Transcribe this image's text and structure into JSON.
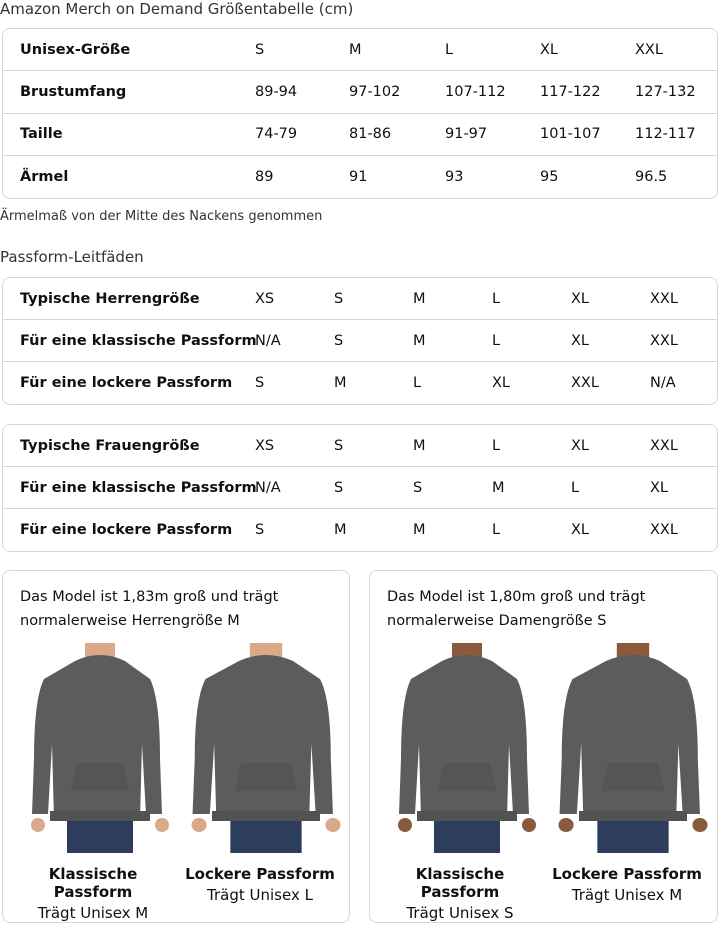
{
  "title": "Amazon Merch on Demand Größentabelle (cm)",
  "size_table": {
    "rows": [
      [
        "Unisex-Größe",
        "S",
        "M",
        "L",
        "XL",
        "XXL"
      ],
      [
        "Brustumfang",
        "89-94",
        "97-102",
        "107-112",
        "117-122",
        "127-132"
      ],
      [
        "Taille",
        "74-79",
        "81-86",
        "91-97",
        "101-107",
        "112-117"
      ],
      [
        "Ärmel",
        "89",
        "91",
        "93",
        "95",
        "96.5"
      ]
    ]
  },
  "note": "Ärmelmaß von der Mitte des Nackens genommen",
  "fit_title": "Passform-Leitfäden",
  "men_table": {
    "rows": [
      [
        "Typische Herrengröße",
        "XS",
        "S",
        "M",
        "L",
        "XL",
        "XXL"
      ],
      [
        "Für eine klassische Passform",
        "N/A",
        "S",
        "M",
        "L",
        "XL",
        "XXL"
      ],
      [
        "Für eine lockere Passform",
        "S",
        "M",
        "L",
        "XL",
        "XXL",
        "N/A"
      ]
    ]
  },
  "women_table": {
    "rows": [
      [
        "Typische Frauengröße",
        "XS",
        "S",
        "M",
        "L",
        "XL",
        "XXL"
      ],
      [
        "Für eine klassische Passform",
        "N/A",
        "S",
        "S",
        "M",
        "L",
        "XL"
      ],
      [
        "Für eine lockere Passform",
        "S",
        "M",
        "M",
        "L",
        "XL",
        "XXL"
      ]
    ]
  },
  "cards": [
    {
      "caption": "Das Model ist 1,83m groß und trägt normalerweise Herrengröße M",
      "figures": [
        {
          "title": "Klassische Passform",
          "sub": "Trägt Unisex M"
        },
        {
          "title": "Lockere Passform",
          "sub": "Trägt Unisex L"
        }
      ]
    },
    {
      "caption": "Das Model ist 1,80m groß und trägt normalerweise Damengröße S",
      "figures": [
        {
          "title": "Klassische Passform",
          "sub": "Trägt Unisex S"
        },
        {
          "title": "Lockere Passform",
          "sub": "Trägt Unisex M"
        }
      ]
    }
  ],
  "colors": {
    "hoodie": "#5c5c5c",
    "jeans": "#2c3e5c",
    "skin_men": "#d9a98a",
    "skin_women": "#8a5a3c",
    "border": "#d5d9d9"
  }
}
